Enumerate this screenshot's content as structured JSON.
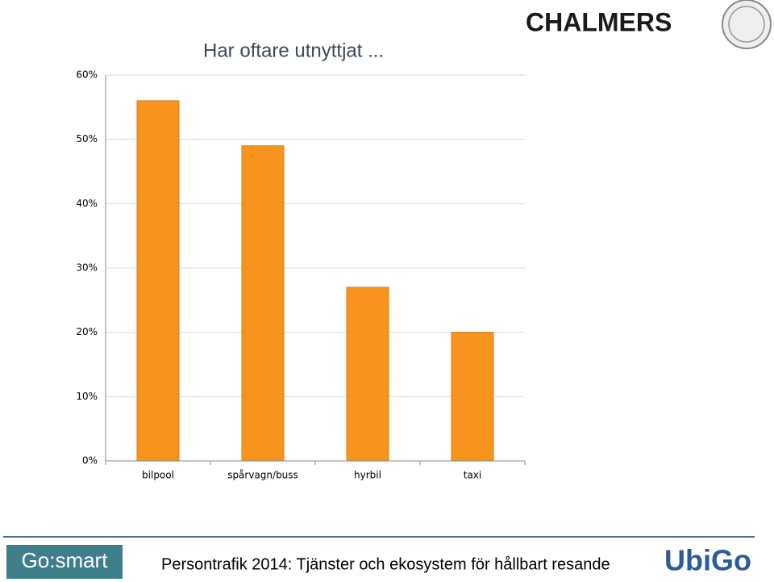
{
  "chart_data": {
    "type": "bar",
    "title": "Har oftare utnyttjat ...",
    "categories": [
      "bilpool",
      "spårvagn/buss",
      "hyrbil",
      "taxi"
    ],
    "values": [
      56,
      49,
      27,
      20
    ],
    "color": "#f7941d",
    "ylim": [
      0,
      60
    ],
    "yticks": [
      {
        "value": 0,
        "label": "0%"
      },
      {
        "value": 10,
        "label": "10%"
      },
      {
        "value": 20,
        "label": "20%"
      },
      {
        "value": 30,
        "label": "30%"
      },
      {
        "value": 40,
        "label": "40%"
      },
      {
        "value": 50,
        "label": "50%"
      },
      {
        "value": 60,
        "label": "60%"
      }
    ],
    "grid": true
  },
  "slide": {
    "logo": "CHALMERS",
    "badge": "Go:smart",
    "footer": "Persontrafik 2014: Tjänster och ekosystem för hållbart resande",
    "brand": "UbiGo"
  }
}
